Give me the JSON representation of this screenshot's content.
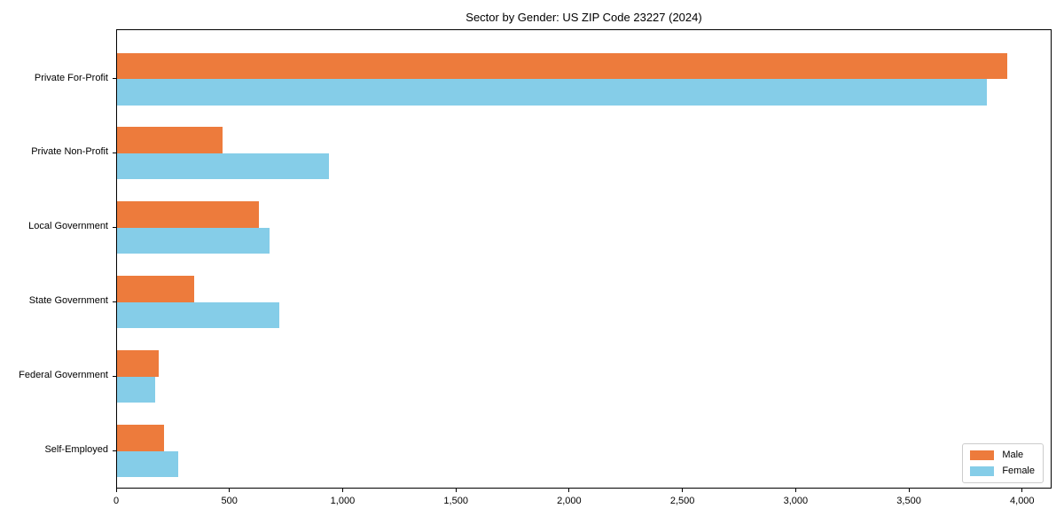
{
  "title": "Sector by Gender: US ZIP Code 23227 (2024)",
  "chart_data": {
    "type": "bar",
    "orientation": "horizontal",
    "title": "Sector by Gender: US ZIP Code 23227 (2024)",
    "xlabel": "",
    "ylabel": "",
    "categories": [
      "Private For-Profit",
      "Private Non-Profit",
      "Local Government",
      "State Government",
      "Federal Government",
      "Self-Employed"
    ],
    "series": [
      {
        "name": "Male",
        "color": "#ed7b3c",
        "values": [
          3932,
          466,
          626,
          342,
          183,
          208
        ]
      },
      {
        "name": "Female",
        "color": "#85cde8",
        "values": [
          3841,
          934,
          673,
          717,
          170,
          270
        ]
      }
    ],
    "xlim": [
      0,
      4130
    ],
    "xticks": [
      0,
      500,
      1000,
      1500,
      2000,
      2500,
      3000,
      3500,
      4000
    ],
    "xtick_labels": [
      "0",
      "500",
      "1,000",
      "1,500",
      "2,000",
      "2,500",
      "3,000",
      "3,500",
      "4,000"
    ],
    "grid": false,
    "legend_position": "lower right",
    "colors": {
      "male": "#ed7b3c",
      "female": "#85cde8",
      "spine": "#000000",
      "legend_border": "#cccccc"
    }
  }
}
